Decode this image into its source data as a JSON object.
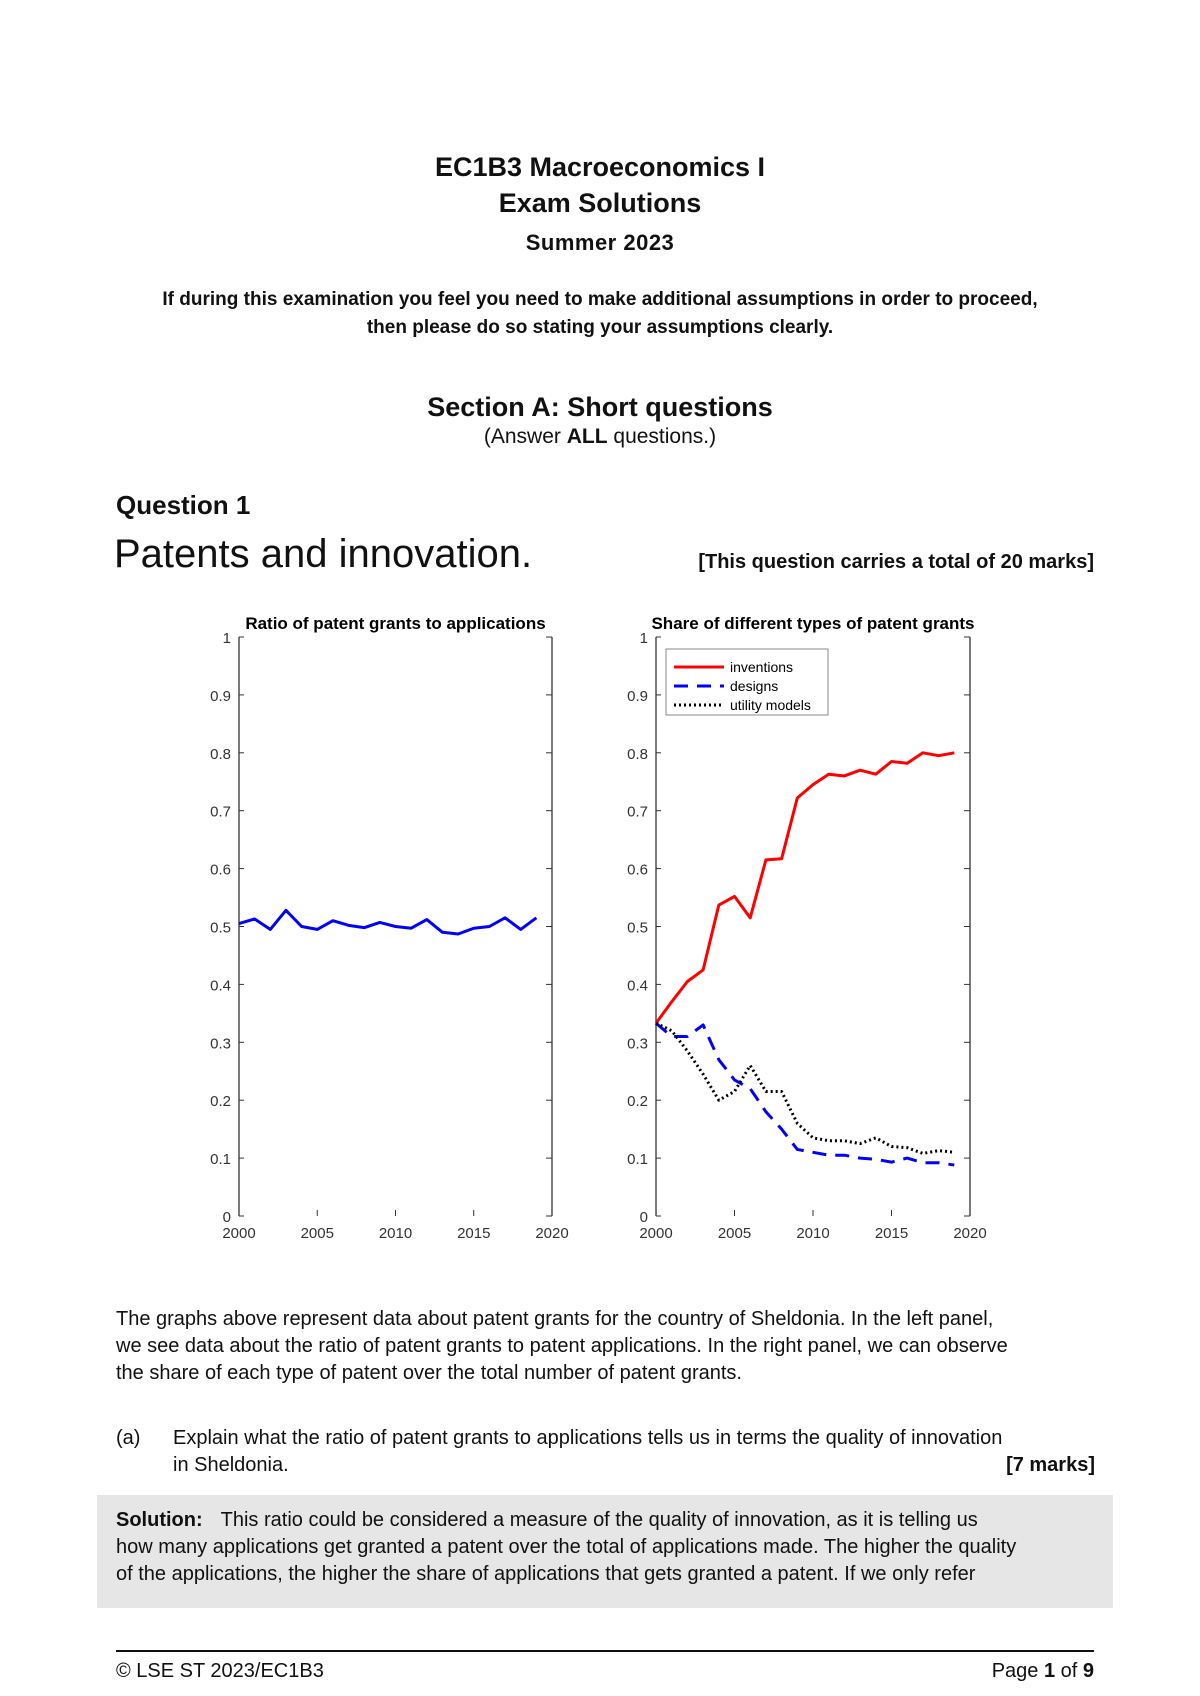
{
  "header": {
    "course": "EC1B3 Macroeconomics I",
    "doc": "Exam Solutions",
    "term": "Summer 2023",
    "instructions_line1": "If during this examination you feel you need to make additional assumptions in order to proceed,",
    "instructions_line2": "then please do so stating your assumptions clearly."
  },
  "section": {
    "title": "Section A: Short questions",
    "sub_pre": "(Answer ",
    "sub_bold": "ALL",
    "sub_post": " questions.)"
  },
  "question": {
    "label": "Question 1",
    "title": "Patents and innovation.",
    "marks": "[This question carries a total of 20 marks]"
  },
  "chart_data": [
    {
      "type": "line",
      "title": "Ratio of patent grants to applications",
      "xlim": [
        2000,
        2020
      ],
      "ylim": [
        0,
        1
      ],
      "xticks": [
        "2000",
        "2005",
        "2010",
        "2015",
        "2020"
      ],
      "yticks": [
        "0",
        "0.1",
        "0.2",
        "0.3",
        "0.4",
        "0.5",
        "0.6",
        "0.7",
        "0.8",
        "0.9",
        "1"
      ],
      "x": [
        2000,
        2001,
        2002,
        2003,
        2004,
        2005,
        2006,
        2007,
        2008,
        2009,
        2010,
        2011,
        2012,
        2013,
        2014,
        2015,
        2016,
        2017,
        2018,
        2019
      ],
      "series": [
        {
          "color": "#0000ff",
          "style": "solid",
          "values": [
            0.505,
            0.513,
            0.495,
            0.528,
            0.5,
            0.495,
            0.51,
            0.502,
            0.498,
            0.507,
            0.5,
            0.497,
            0.512,
            0.49,
            0.487,
            0.497,
            0.5,
            0.515,
            0.495,
            0.515
          ]
        }
      ]
    },
    {
      "type": "line",
      "title": "Share of different types of patent grants",
      "xlim": [
        2000,
        2020
      ],
      "ylim": [
        0,
        1
      ],
      "legend": "top-left",
      "xticks": [
        "2000",
        "2005",
        "2010",
        "2015",
        "2020"
      ],
      "yticks": [
        "0",
        "0.1",
        "0.2",
        "0.3",
        "0.4",
        "0.5",
        "0.6",
        "0.7",
        "0.8",
        "0.9",
        "1"
      ],
      "x": [
        2000,
        2001,
        2002,
        2003,
        2004,
        2005,
        2006,
        2007,
        2008,
        2009,
        2010,
        2011,
        2012,
        2013,
        2014,
        2015,
        2016,
        2017,
        2018,
        2019
      ],
      "series": [
        {
          "name": "inventions",
          "color": "#ff0000",
          "style": "solid",
          "values": [
            0.333,
            0.37,
            0.405,
            0.425,
            0.537,
            0.552,
            0.515,
            0.615,
            0.617,
            0.722,
            0.745,
            0.763,
            0.76,
            0.77,
            0.763,
            0.785,
            0.782,
            0.8,
            0.795,
            0.8
          ]
        },
        {
          "name": "designs",
          "color": "#0000ff",
          "style": "dashed",
          "values": [
            0.333,
            0.31,
            0.31,
            0.33,
            0.27,
            0.235,
            0.22,
            0.18,
            0.15,
            0.115,
            0.11,
            0.105,
            0.105,
            0.1,
            0.098,
            0.093,
            0.1,
            0.092,
            0.092,
            0.088
          ]
        },
        {
          "name": "utility models",
          "color": "#000000",
          "style": "dotted",
          "values": [
            0.333,
            0.32,
            0.285,
            0.245,
            0.2,
            0.215,
            0.26,
            0.215,
            0.215,
            0.16,
            0.135,
            0.13,
            0.13,
            0.125,
            0.135,
            0.12,
            0.118,
            0.108,
            0.113,
            0.11
          ]
        }
      ]
    }
  ],
  "intro": [
    "The graphs above represent data about patent grants for the country of Sheldonia. In the left panel,",
    "we see data about the ratio of patent grants to patent applications. In the right panel, we can observe",
    "the share of each type of patent over the total number of patent grants."
  ],
  "part_a": {
    "label": "(a)",
    "line1": "Explain what the ratio of patent grants to applications tells us in terms the quality of innovation",
    "line2": "in Sheldonia.",
    "marks": "[7 marks]"
  },
  "solution": {
    "label": "Solution:",
    "lines": [
      "This ratio could be considered a measure of the quality of innovation, as it is telling us",
      "how many applications get granted a patent over the total of applications made. The higher the quality",
      "of the applications, the higher the share of applications that gets granted a patent. If we only refer"
    ]
  },
  "footer": {
    "left": "© LSE ST 2023/EC1B3",
    "page_pre": "Page ",
    "page": "1",
    "page_mid": " of ",
    "pages": "9"
  }
}
